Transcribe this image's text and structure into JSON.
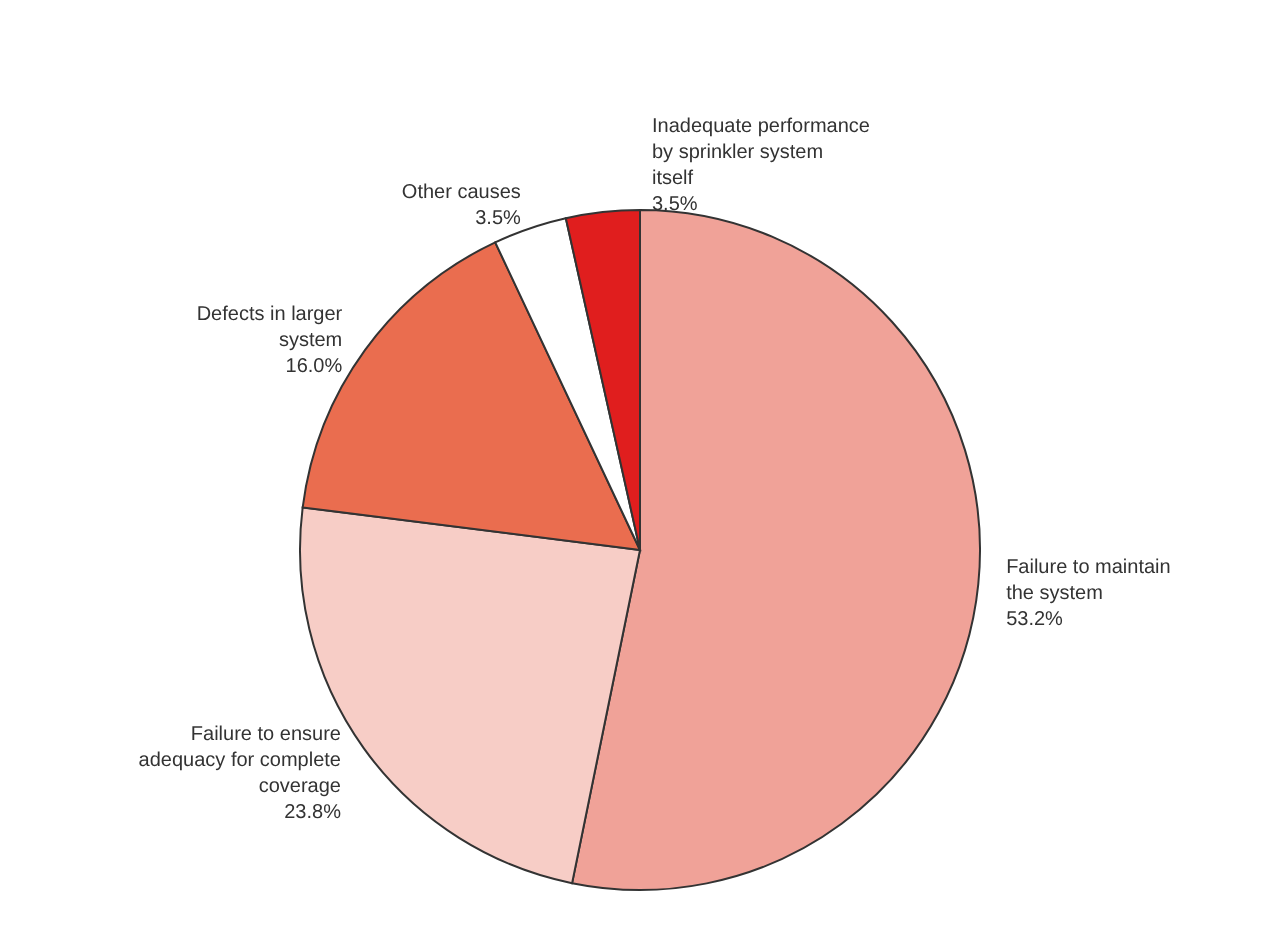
{
  "chart_data": {
    "type": "pie",
    "categories": [
      "Failure to maintain the system",
      "Failure to ensure adequacy for complete coverage",
      "Defects in larger system",
      "Other causes",
      "Inadequate performance by sprinkler system itself"
    ],
    "values": [
      53.2,
      23.8,
      16.0,
      3.5,
      3.5
    ],
    "value_labels": [
      "53.2%",
      "23.8%",
      "16.0%",
      "3.5%",
      "3.5%"
    ],
    "colors": [
      "#f0a298",
      "#f7cdc6",
      "#ea6d4f",
      "#ffffff",
      "#e01e1e"
    ]
  }
}
